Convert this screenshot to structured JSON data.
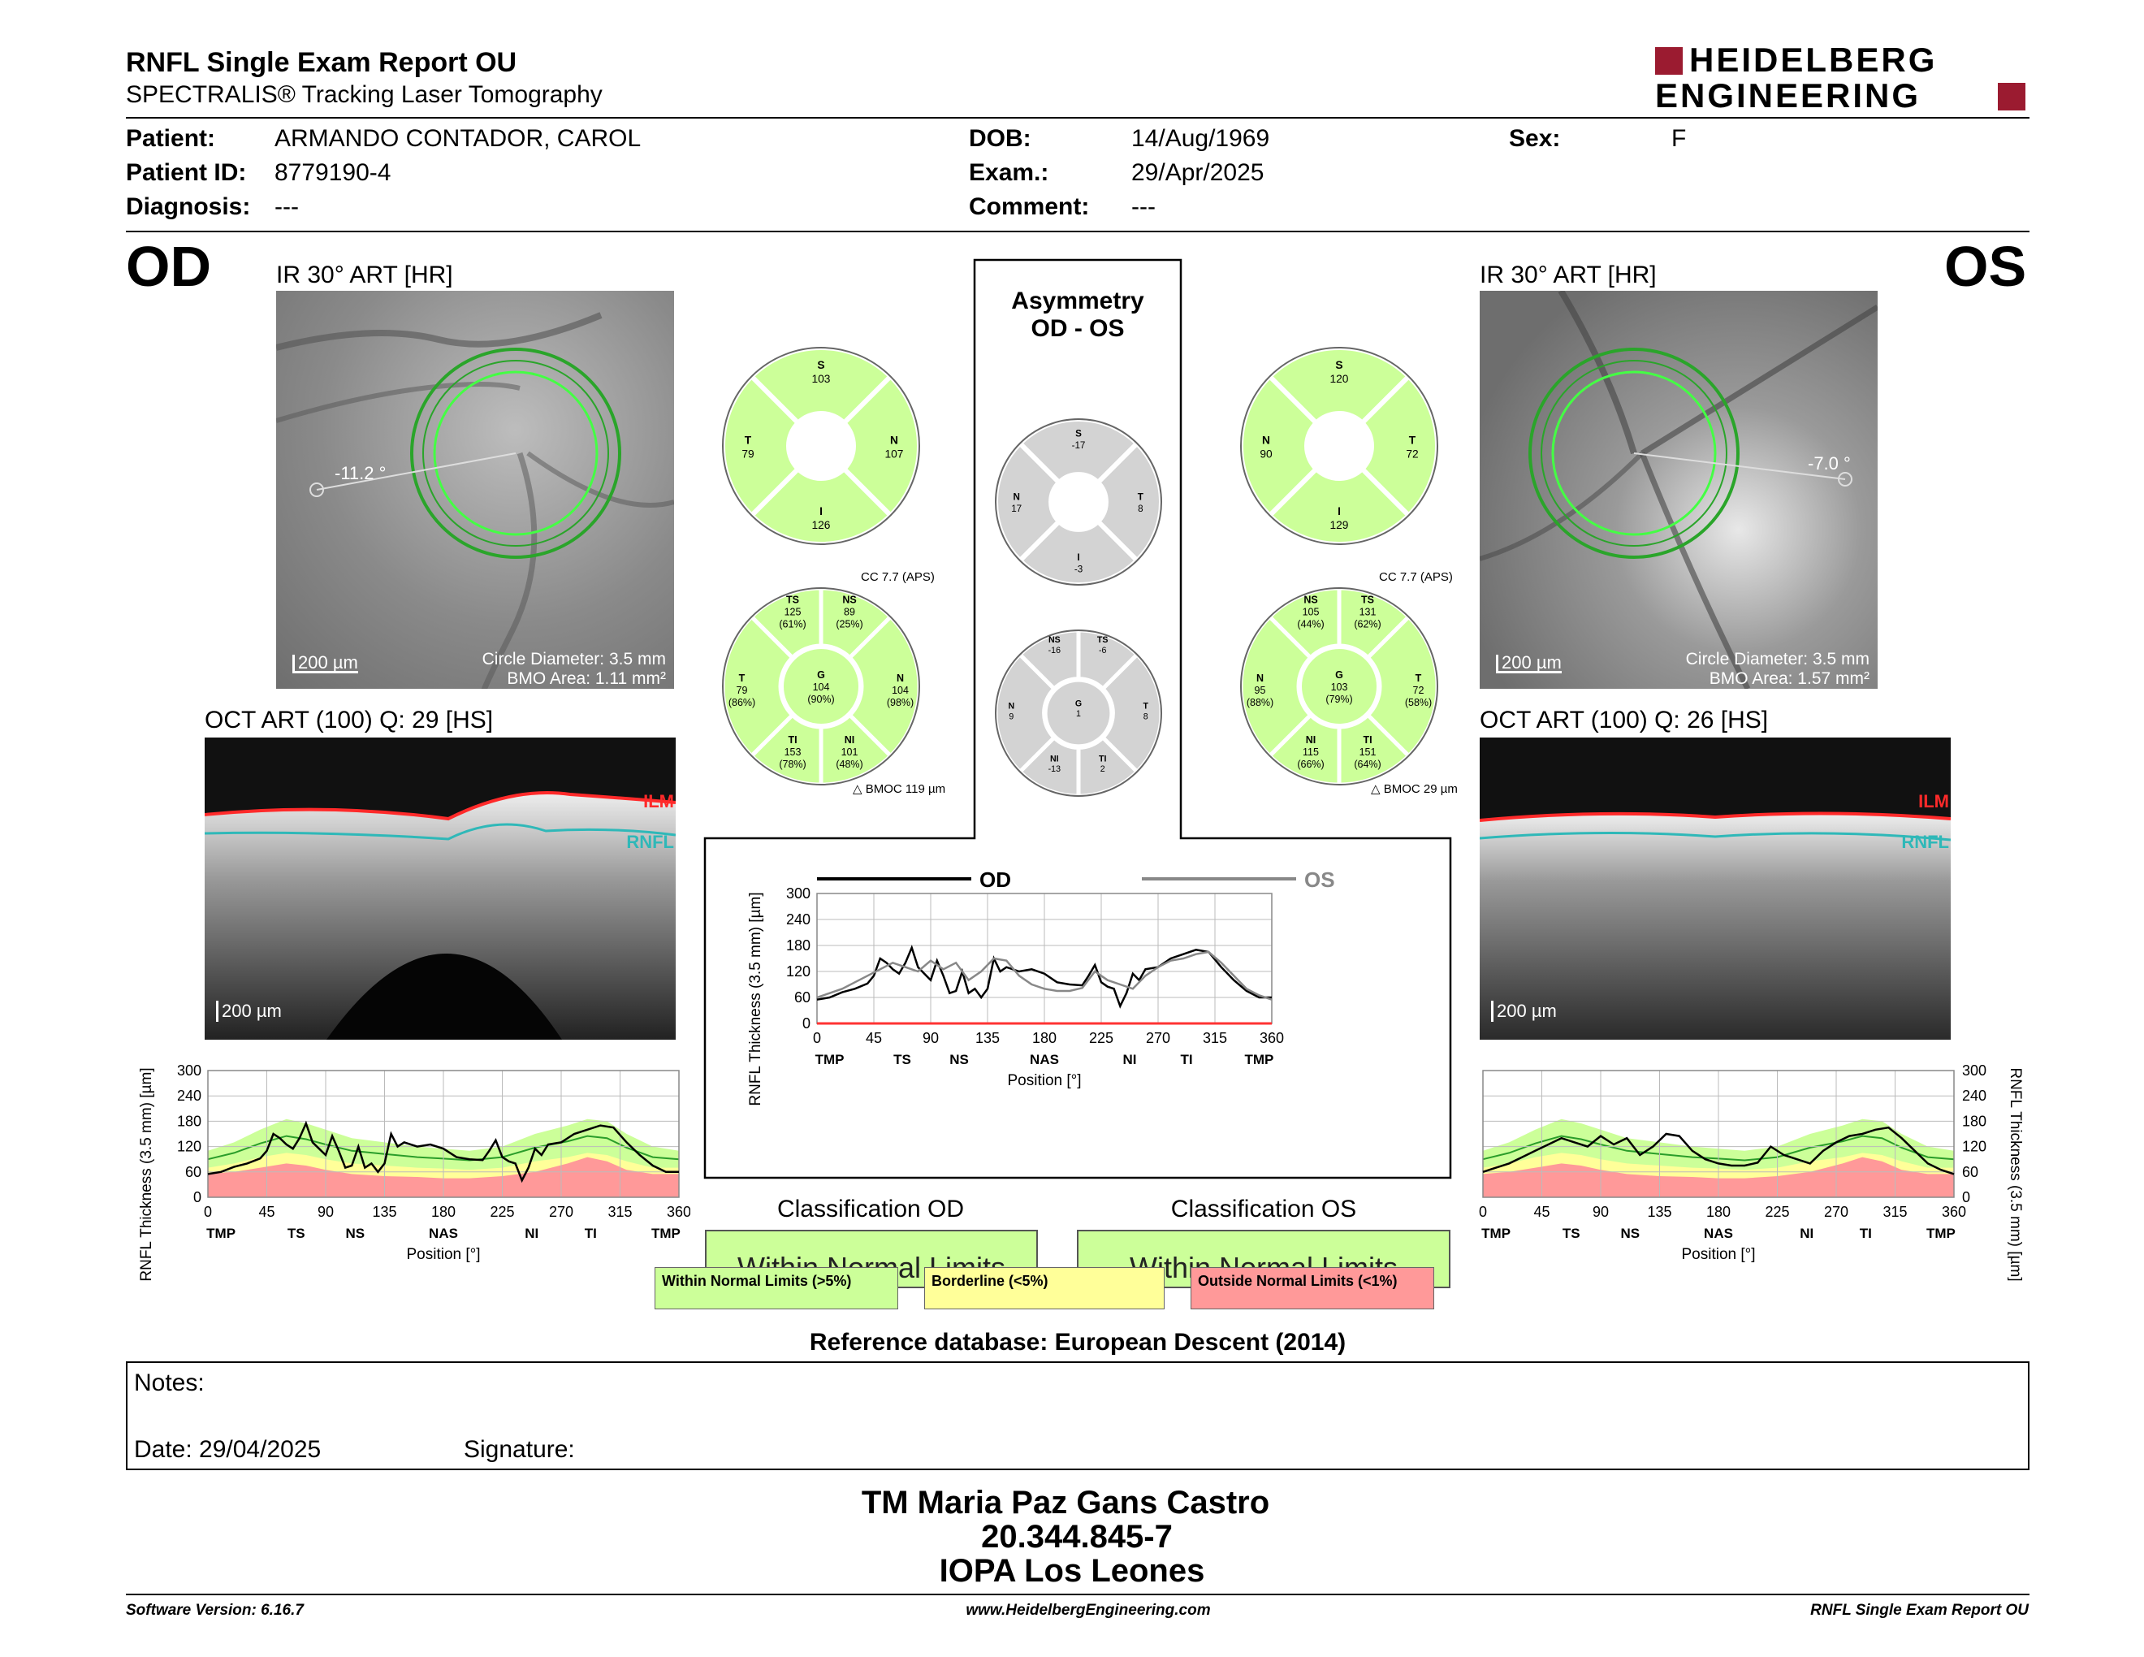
{
  "header": {
    "title": "RNFL Single Exam Report OU",
    "subtitle": "SPECTRALIS® Tracking Laser Tomography",
    "logo_line1": "HEIDELBERG",
    "logo_line2": "ENGINEERING"
  },
  "patient": {
    "patient_label": "Patient:",
    "patient_value": "ARMANDO CONTADOR, CAROL",
    "id_label": "Patient ID:",
    "id_value": "8779190-4",
    "diagnosis_label": "Diagnosis:",
    "diagnosis_value": "---",
    "dob_label": "DOB:",
    "dob_value": "14/Aug/1969",
    "exam_label": "Exam.:",
    "exam_value": "29/Apr/2025",
    "comment_label": "Comment:",
    "comment_value": "---",
    "sex_label": "Sex:",
    "sex_value": "F"
  },
  "od": {
    "eye": "OD",
    "ir_title": "IR 30° ART [HR]",
    "angle": "-11.2 °",
    "scale": "200 µm",
    "circle_diameter": "Circle Diameter: 3.5 mm",
    "bmo_area": "BMO Area: 1.11 mm²",
    "oct_title": "OCT ART (100) Q: 29 [HS]",
    "oct_scale": "200 µm",
    "ilm": "ILM",
    "rnfl": "RNFL",
    "sectors4": {
      "S": "103",
      "T": "79",
      "N": "107",
      "I": "126"
    },
    "cc": "CC 7.7 (APS)",
    "bmoc": "BMOC 119 µm",
    "sectors6": {
      "TS": [
        "TS",
        "125",
        "(61%)"
      ],
      "NS": [
        "NS",
        "89",
        "(25%)"
      ],
      "T": [
        "T",
        "79",
        "(86%)"
      ],
      "G": [
        "G",
        "104",
        "(90%)"
      ],
      "N": [
        "N",
        "104",
        "(98%)"
      ],
      "TI": [
        "TI",
        "153",
        "(78%)"
      ],
      "NI": [
        "NI",
        "101",
        "(48%)"
      ]
    },
    "classification_title": "Classification OD",
    "classification": "Within Normal Limits"
  },
  "os": {
    "eye": "OS",
    "ir_title": "IR 30° ART [HR]",
    "angle": "-7.0 °",
    "scale": "200 µm",
    "circle_diameter": "Circle Diameter: 3.5 mm",
    "bmo_area": "BMO Area: 1.57 mm²",
    "oct_title": "OCT ART (100) Q: 26 [HS]",
    "oct_scale": "200 µm",
    "ilm": "ILM",
    "rnfl": "RNFL",
    "sectors4": {
      "S": "120",
      "N": "90",
      "T": "72",
      "I": "129"
    },
    "cc": "CC 7.7 (APS)",
    "bmoc": "BMOC 29 µm",
    "sectors6": {
      "NS": [
        "NS",
        "105",
        "(44%)"
      ],
      "TS": [
        "TS",
        "131",
        "(62%)"
      ],
      "N": [
        "N",
        "95",
        "(88%)"
      ],
      "G": [
        "G",
        "103",
        "(79%)"
      ],
      "T": [
        "T",
        "72",
        "(58%)"
      ],
      "NI": [
        "NI",
        "115",
        "(66%)"
      ],
      "TI": [
        "TI",
        "151",
        "(64%)"
      ]
    },
    "classification_title": "Classification OS",
    "classification": "Within Normal Limits"
  },
  "asymmetry": {
    "title1": "Asymmetry",
    "title2": "OD - OS",
    "sectors4": {
      "S": "-17",
      "N": "17",
      "T": "8",
      "I": "-3"
    },
    "sectors6": {
      "NS": [
        "NS",
        "-16"
      ],
      "TS": [
        "TS",
        "-6"
      ],
      "N": [
        "N",
        "9"
      ],
      "G": [
        "G",
        "1"
      ],
      "T": [
        "T",
        "8"
      ],
      "NI": [
        "NI",
        "-13"
      ],
      "TI": [
        "TI",
        "2"
      ]
    }
  },
  "chart_labels": {
    "ylabel": "RNFL Thickness (3.5 mm) [µm]",
    "xlabel": "Position [°]",
    "yticks": [
      "0",
      "60",
      "120",
      "180",
      "240",
      "300"
    ],
    "xticks": [
      "0",
      "45",
      "90",
      "135",
      "180",
      "225",
      "270",
      "315",
      "360"
    ],
    "sectors": [
      "TMP",
      "TS",
      "NS",
      "NAS",
      "NI",
      "TI",
      "TMP"
    ],
    "od_legend": "OD",
    "os_legend": "OS"
  },
  "legend": {
    "wnl": "Within Normal Limits (>5%)",
    "borderline": "Borderline (<5%)",
    "onl": "Outside Normal Limits (<1%)"
  },
  "reference": "Reference database: European Descent (2014)",
  "notes": {
    "notes_label": "Notes:",
    "date_label": "Date: 29/04/2025",
    "signature_label": "Signature:"
  },
  "signer": {
    "name": "TM Maria Paz Gans Castro",
    "id": "20.344.845-7",
    "institution": "IOPA Los Leones"
  },
  "footer": {
    "software": "Software Version: 6.16.7",
    "website": "www.HeidelbergEngineering.com",
    "report": "RNFL Single Exam Report OU"
  },
  "colors": {
    "normal_green": "#ccff99",
    "borderline_yellow": "#ffff99",
    "outside_red": "#ff9999",
    "logo_red": "#9b1b30",
    "asym_gray": "#d3d3d3"
  },
  "chart_data": [
    {
      "type": "line",
      "title": "",
      "xlabel": "Position [°]",
      "ylabel": "RNFL Thickness (3.5 mm) [µm]",
      "xlim": [
        0,
        360
      ],
      "ylim": [
        0,
        300
      ],
      "series": [
        {
          "name": "OD",
          "x": [
            0,
            10,
            20,
            30,
            40,
            45,
            50,
            55,
            60,
            65,
            70,
            75,
            80,
            85,
            90,
            95,
            100,
            105,
            110,
            115,
            120,
            125,
            130,
            135,
            140,
            145,
            150,
            160,
            170,
            180,
            190,
            200,
            210,
            215,
            220,
            225,
            230,
            235,
            240,
            245,
            250,
            255,
            260,
            270,
            280,
            290,
            300,
            310,
            320,
            330,
            340,
            350,
            360
          ],
          "y": [
            55,
            60,
            72,
            80,
            92,
            110,
            150,
            140,
            125,
            115,
            140,
            175,
            130,
            115,
            100,
            145,
            110,
            70,
            75,
            120,
            70,
            80,
            60,
            80,
            150,
            120,
            130,
            120,
            125,
            115,
            95,
            90,
            88,
            110,
            135,
            95,
            85,
            80,
            40,
            70,
            115,
            100,
            125,
            130,
            150,
            160,
            170,
            165,
            130,
            100,
            75,
            60,
            60
          ]
        }
      ]
    },
    {
      "type": "line",
      "title": "",
      "xlabel": "Position [°]",
      "ylabel": "RNFL Thickness (3.5 mm) [µm]",
      "xlim": [
        0,
        360
      ],
      "ylim": [
        0,
        300
      ],
      "series": [
        {
          "name": "OD",
          "x": [
            0,
            10,
            20,
            30,
            40,
            45,
            50,
            55,
            60,
            65,
            70,
            75,
            80,
            85,
            90,
            95,
            100,
            105,
            110,
            115,
            120,
            125,
            130,
            135,
            140,
            145,
            150,
            160,
            170,
            180,
            190,
            200,
            210,
            215,
            220,
            225,
            230,
            235,
            240,
            245,
            250,
            255,
            260,
            270,
            280,
            290,
            300,
            310,
            320,
            330,
            340,
            350,
            360
          ],
          "y": [
            55,
            60,
            72,
            80,
            92,
            110,
            150,
            140,
            125,
            115,
            140,
            175,
            130,
            115,
            100,
            145,
            110,
            70,
            75,
            120,
            70,
            80,
            60,
            80,
            150,
            120,
            130,
            120,
            125,
            115,
            95,
            90,
            88,
            110,
            135,
            95,
            85,
            80,
            40,
            70,
            115,
            100,
            125,
            130,
            150,
            160,
            170,
            165,
            130,
            100,
            75,
            60,
            60
          ]
        },
        {
          "name": "OS",
          "x": [
            0,
            10,
            20,
            30,
            40,
            50,
            60,
            70,
            80,
            90,
            100,
            110,
            120,
            130,
            140,
            150,
            160,
            170,
            180,
            190,
            200,
            210,
            220,
            230,
            240,
            250,
            260,
            270,
            280,
            290,
            300,
            310,
            320,
            330,
            340,
            350,
            360
          ],
          "y": [
            60,
            70,
            80,
            95,
            110,
            125,
            140,
            130,
            120,
            145,
            125,
            140,
            100,
            120,
            150,
            145,
            110,
            90,
            80,
            75,
            75,
            82,
            120,
            100,
            90,
            80,
            110,
            130,
            145,
            150,
            160,
            165,
            140,
            110,
            80,
            65,
            55
          ]
        }
      ]
    },
    {
      "type": "line",
      "title": "",
      "xlabel": "Position [°]",
      "ylabel": "RNFL Thickness (3.5 mm) [µm]",
      "xlim": [
        0,
        360
      ],
      "ylim": [
        0,
        300
      ],
      "series": [
        {
          "name": "OS",
          "x": [
            0,
            10,
            20,
            30,
            40,
            50,
            60,
            70,
            80,
            90,
            100,
            110,
            120,
            130,
            140,
            150,
            160,
            170,
            180,
            190,
            200,
            210,
            220,
            230,
            240,
            250,
            260,
            270,
            280,
            290,
            300,
            310,
            320,
            330,
            340,
            350,
            360
          ],
          "y": [
            60,
            70,
            80,
            95,
            110,
            125,
            140,
            130,
            120,
            145,
            125,
            140,
            100,
            120,
            150,
            145,
            110,
            90,
            80,
            75,
            75,
            82,
            120,
            100,
            90,
            80,
            110,
            130,
            145,
            150,
            160,
            165,
            140,
            110,
            80,
            65,
            55
          ]
        }
      ]
    }
  ]
}
